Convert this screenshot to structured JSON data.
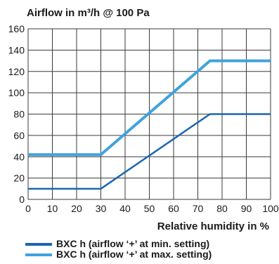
{
  "chart_data": {
    "type": "line",
    "title": "",
    "ylabel": "Airflow in m³/h @ 100 Pa",
    "xlabel": "Relative humidity in %",
    "xlim": [
      0,
      100
    ],
    "ylim": [
      0,
      160
    ],
    "xticks": [
      0,
      10,
      20,
      30,
      40,
      50,
      60,
      70,
      80,
      90,
      100
    ],
    "yticks": [
      0,
      20,
      40,
      60,
      80,
      100,
      120,
      140,
      160
    ],
    "grid": true,
    "legend_position": "bottom",
    "series": [
      {
        "name": "BXC h (airflow ‘+’ at min. setting)",
        "color": "#1a66b0",
        "x": [
          0,
          30,
          75,
          100
        ],
        "y": [
          10,
          10,
          80,
          80
        ]
      },
      {
        "name": "BXC h (airflow ‘+’ at max. setting)",
        "color": "#3fa3de",
        "x": [
          0,
          30,
          75,
          100
        ],
        "y": [
          42,
          42,
          130,
          130
        ]
      }
    ]
  }
}
